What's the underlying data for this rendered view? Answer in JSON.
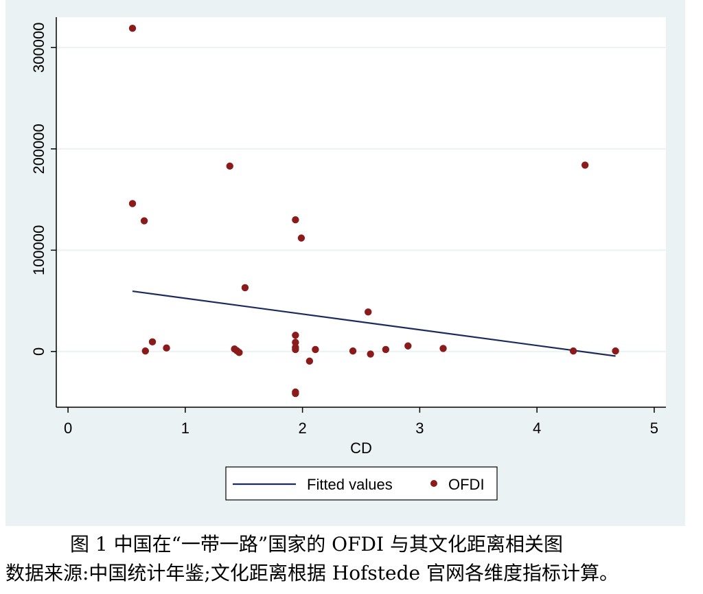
{
  "chart_data": {
    "type": "scatter",
    "xlabel": "CD",
    "ylabel": "",
    "xlim": [
      -0.1,
      5.1
    ],
    "ylim": [
      -55000,
      330000
    ],
    "x_ticks": [
      0,
      1,
      2,
      3,
      4,
      5
    ],
    "x_tick_labels": [
      "0",
      "1",
      "2",
      "3",
      "4",
      "5"
    ],
    "y_ticks": [
      0,
      100000,
      200000,
      300000
    ],
    "y_tick_labels": [
      "0",
      "100000",
      "200000",
      "300000"
    ],
    "grid": true,
    "legend_position": "bottom",
    "colors": {
      "points": "#8b1a1a",
      "fit_line": "#1a2a5e",
      "background": "#eaf2f3"
    },
    "series": [
      {
        "name": "OFDI",
        "kind": "scatter",
        "points": [
          [
            0.55,
            319000
          ],
          [
            0.55,
            146000
          ],
          [
            0.65,
            129000
          ],
          [
            0.66,
            500
          ],
          [
            0.72,
            9500
          ],
          [
            0.84,
            3500
          ],
          [
            1.38,
            183000
          ],
          [
            1.42,
            2500
          ],
          [
            1.44,
            800
          ],
          [
            1.46,
            -1000
          ],
          [
            1.51,
            63000
          ],
          [
            1.94,
            130000
          ],
          [
            1.94,
            16000
          ],
          [
            1.94,
            9000
          ],
          [
            1.94,
            4000
          ],
          [
            1.94,
            2000
          ],
          [
            1.94,
            -40000
          ],
          [
            1.94,
            -41500
          ],
          [
            1.99,
            112000
          ],
          [
            2.06,
            -9500
          ],
          [
            2.11,
            2000
          ],
          [
            2.43,
            500
          ],
          [
            2.56,
            39000
          ],
          [
            2.58,
            -2500
          ],
          [
            2.71,
            2000
          ],
          [
            2.9,
            5500
          ],
          [
            3.2,
            3000
          ],
          [
            4.31,
            500
          ],
          [
            4.41,
            184000
          ],
          [
            4.67,
            500
          ]
        ]
      },
      {
        "name": "Fitted values",
        "kind": "line",
        "points": [
          [
            0.55,
            59500
          ],
          [
            4.67,
            -4500
          ]
        ]
      }
    ]
  },
  "legend": {
    "fitted_label": "Fitted values",
    "ofdi_label": "OFDI"
  },
  "caption": {
    "line1": "图 1   中国在“一带一路”国家的 OFDI 与其文化距离相关图",
    "line2": "数据来源:中国统计年鉴;文化距离根据 Hofstede 官网各维度指标计算。"
  }
}
